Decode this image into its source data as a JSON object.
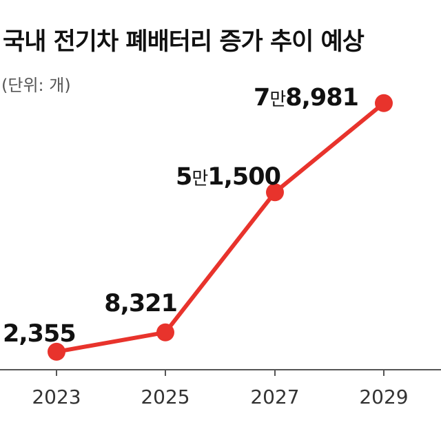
{
  "chart_data": {
    "type": "line",
    "title": "국내 전기차 폐배터리 증가 추이 예상",
    "subtitle": "(단위: 개)",
    "x": [
      "2023",
      "2025",
      "2027",
      "2029"
    ],
    "series": [
      {
        "values": [
          2355,
          8321,
          51500,
          78981
        ]
      }
    ],
    "data_labels": [
      {
        "prefix": "",
        "man": "",
        "rest": "2,355"
      },
      {
        "prefix": "",
        "man": "",
        "rest": "8,321"
      },
      {
        "prefix": "5",
        "man": "만",
        "rest": "1,500"
      },
      {
        "prefix": "7",
        "man": "만",
        "rest": "8,981"
      }
    ],
    "ylim": [
      0,
      80000
    ],
    "grid": false,
    "colors": {
      "line": "#e8332c",
      "axis": "#555555"
    }
  }
}
